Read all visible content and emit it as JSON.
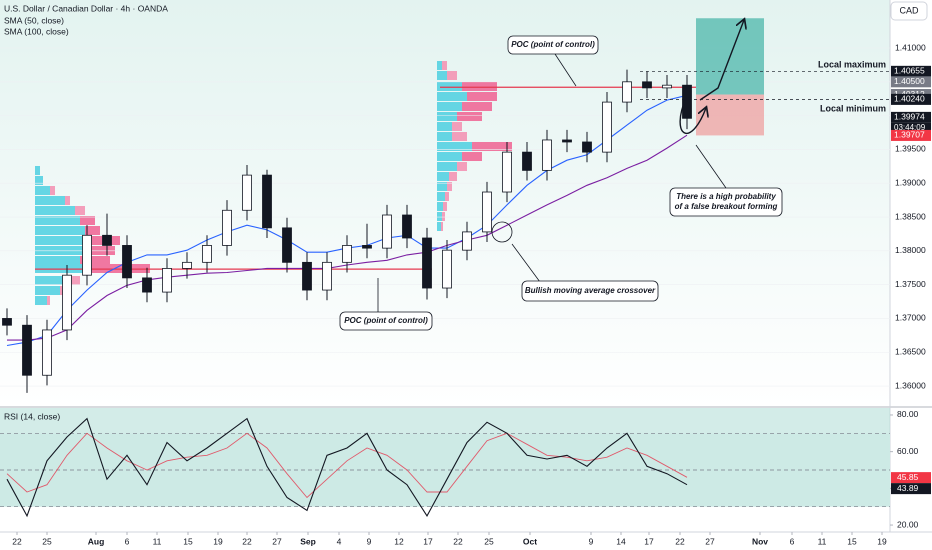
{
  "chart_data": [
    {
      "type": "candlestick",
      "title": "U.S. Dollar / Canadian Dollar · 4h · OANDA",
      "currency": "CAD",
      "countdown": "03:44:09",
      "x": [
        -1,
        1,
        3,
        5,
        7,
        9,
        11,
        13,
        15,
        17,
        19,
        21,
        23,
        25,
        27,
        29,
        31,
        33,
        35,
        37,
        39,
        41,
        43,
        45,
        47,
        49,
        51,
        53,
        55,
        57,
        59,
        61,
        63,
        65,
        67
      ],
      "open": [
        1.37,
        1.369,
        1.3616,
        1.3683,
        1.3764,
        1.3823,
        1.3808,
        1.376,
        1.3739,
        1.3774,
        1.3783,
        1.3808,
        1.386,
        1.3912,
        1.3834,
        1.3783,
        1.3742,
        1.3783,
        1.3808,
        1.3804,
        1.3853,
        1.3819,
        1.3745,
        1.3801,
        1.3828,
        1.3887,
        1.3946,
        1.3919,
        1.3964,
        1.3961,
        1.3946,
        1.402,
        1.405,
        1.4041,
        1.4045
      ],
      "high": [
        1.3715,
        1.3705,
        1.3698,
        1.3779,
        1.3838,
        1.3855,
        1.3823,
        1.3775,
        1.3789,
        1.3798,
        1.3823,
        1.3875,
        1.3927,
        1.392,
        1.3849,
        1.3798,
        1.3798,
        1.3823,
        1.384,
        1.3868,
        1.3868,
        1.3834,
        1.3816,
        1.3843,
        1.3902,
        1.3961,
        1.3961,
        1.3979,
        1.3979,
        1.3976,
        1.4035,
        1.4068,
        1.4065,
        1.406,
        1.406
      ],
      "low": [
        1.3675,
        1.359,
        1.3601,
        1.3668,
        1.3749,
        1.3793,
        1.3745,
        1.3724,
        1.3724,
        1.3759,
        1.3768,
        1.3793,
        1.3845,
        1.3819,
        1.3768,
        1.3727,
        1.3727,
        1.3768,
        1.3789,
        1.3789,
        1.3804,
        1.3728,
        1.373,
        1.3786,
        1.3813,
        1.3872,
        1.3904,
        1.3904,
        1.3946,
        1.3931,
        1.3931,
        1.4005,
        1.4026,
        1.4026,
        1.398
      ],
      "close": [
        1.369,
        1.3616,
        1.3683,
        1.3764,
        1.3823,
        1.3808,
        1.376,
        1.3739,
        1.3774,
        1.3783,
        1.3808,
        1.386,
        1.3912,
        1.3834,
        1.3783,
        1.3742,
        1.3783,
        1.3808,
        1.3804,
        1.3853,
        1.3819,
        1.3745,
        1.3801,
        1.3828,
        1.3887,
        1.3946,
        1.3919,
        1.3964,
        1.3961,
        1.3946,
        1.402,
        1.405,
        1.4041,
        1.4045,
        1.3996
      ],
      "series": [
        {
          "name": "SMA (50, close)",
          "color": "#2962ff",
          "values": [
            1.366,
            1.3665,
            1.3675,
            1.3712,
            1.3742,
            1.3768,
            1.3783,
            1.3794,
            1.3794,
            1.3801,
            1.3816,
            1.3828,
            1.3838,
            1.3831,
            1.3816,
            1.3798,
            1.3798,
            1.3804,
            1.3808,
            1.3819,
            1.3823,
            1.3804,
            1.3804,
            1.3819,
            1.3838,
            1.3868,
            1.3897,
            1.3919,
            1.3934,
            1.3942,
            1.3964,
            1.3986,
            1.4008,
            1.4023,
            1.403
          ]
        },
        {
          "name": "SMA (100, close)",
          "color": "#7b1fa2",
          "values": [
            1.3668,
            1.3668,
            1.3671,
            1.3683,
            1.3712,
            1.3734,
            1.3749,
            1.3757,
            1.3761,
            1.3764,
            1.3767,
            1.3768,
            1.3771,
            1.3774,
            1.3774,
            1.3774,
            1.3774,
            1.3779,
            1.3783,
            1.3786,
            1.3794,
            1.3798,
            1.3808,
            1.3816,
            1.3823,
            1.3838,
            1.3853,
            1.3868,
            1.3882,
            1.3897,
            1.3908,
            1.3922,
            1.3934,
            1.3952,
            1.3971
          ]
        }
      ],
      "xlim": [
        -1.7,
        87.3
      ],
      "ylim": [
        1.3572,
        1.4171
      ],
      "yticks": [
        {
          "value": 1.36,
          "label": "1.36000"
        },
        {
          "value": 1.365,
          "label": "1.36500"
        },
        {
          "value": 1.37,
          "label": "1.37000"
        },
        {
          "value": 1.375,
          "label": "1.37500"
        },
        {
          "value": 1.38,
          "label": "1.38000"
        },
        {
          "value": 1.385,
          "label": "1.38500"
        },
        {
          "value": 1.39,
          "label": "1.39000"
        },
        {
          "value": 1.395,
          "label": "1.39500"
        },
        {
          "value": 1.4,
          "label": "1.40000"
        },
        {
          "value": 1.405,
          "label": "1.40500"
        },
        {
          "value": 1.41,
          "label": "1.41000"
        }
      ],
      "poc_levels": [
        1.3773,
        1.4042
      ],
      "position": {
        "target": 1.4144,
        "entry": 1.40312,
        "stop": 1.39707
      },
      "price_labels": [
        {
          "value": 1.40655,
          "label": "1.40655",
          "color": "#131722",
          "line": "dashed"
        },
        {
          "value": 1.405,
          "label": "1.40500",
          "color": "#787b86"
        },
        {
          "value": 1.40312,
          "label": "1.40312",
          "color": "#787b86"
        },
        {
          "value": 1.4024,
          "label": "1.40240",
          "color": "#131722",
          "line": "dashed"
        },
        {
          "value": 1.39974,
          "label": "1.39974",
          "color": "#131722"
        },
        {
          "value": 1.39707,
          "label": "1.39707",
          "color": "#f23645"
        }
      ],
      "annotations": [
        "POC (point of control)",
        "POC (point of control)",
        "Local maximum",
        "Local minimum",
        "There is a high probability",
        "of a false breakout forming",
        "Bullish moving average crossover"
      ]
    },
    {
      "type": "line",
      "title": "RSI (14, close)",
      "x": [
        -1,
        1,
        3,
        5,
        7,
        9,
        11,
        13,
        15,
        17,
        19,
        21,
        23,
        25,
        27,
        29,
        31,
        33,
        35,
        37,
        39,
        41,
        43,
        45,
        47,
        49,
        51,
        53,
        55,
        57,
        59,
        61,
        63,
        65,
        67
      ],
      "series": [
        {
          "color": "#131722",
          "values": [
            45,
            25,
            55,
            68,
            78,
            45,
            58,
            42,
            65,
            55,
            62,
            70,
            78,
            52,
            35,
            28,
            58,
            62,
            70,
            50,
            42,
            25,
            45,
            65,
            76,
            70,
            58,
            56,
            58,
            52,
            62,
            70,
            52,
            48,
            42
          ]
        },
        {
          "color": "#e05a6b",
          "values": [
            48,
            38,
            42,
            58,
            70,
            62,
            55,
            50,
            55,
            57,
            58,
            62,
            70,
            62,
            48,
            35,
            45,
            55,
            62,
            58,
            50,
            38,
            38,
            52,
            66,
            70,
            64,
            58,
            57,
            55,
            57,
            62,
            58,
            52,
            46
          ]
        }
      ],
      "levels": [
        70,
        50,
        30
      ],
      "xlim": [
        -1.7,
        87.3
      ],
      "ylim": [
        17.3,
        83.8
      ],
      "yticks": [
        {
          "value": 20,
          "label": "20.00"
        },
        {
          "value": 40,
          "label": "40.00"
        },
        {
          "value": 60,
          "label": "60.00"
        },
        {
          "value": 80,
          "label": "80.00"
        }
      ],
      "value_markers": [
        {
          "value": 45.85,
          "label": "45.85",
          "color": "#f23645"
        },
        {
          "value": 43.89,
          "label": "43.89",
          "color": "#131722"
        }
      ],
      "xticks": [
        {
          "value": 0,
          "label": "22"
        },
        {
          "value": 3,
          "label": "25"
        },
        {
          "value": 7.9,
          "label": "Aug"
        },
        {
          "value": 11,
          "label": "6"
        },
        {
          "value": 14,
          "label": "11"
        },
        {
          "value": 17.1,
          "label": "15"
        },
        {
          "value": 20.1,
          "label": "19"
        },
        {
          "value": 23,
          "label": "22"
        },
        {
          "value": 26,
          "label": "27"
        },
        {
          "value": 29.1,
          "label": "Sep"
        },
        {
          "value": 32.2,
          "label": "4"
        },
        {
          "value": 35.2,
          "label": "9"
        },
        {
          "value": 38.2,
          "label": "12"
        },
        {
          "value": 41.1,
          "label": "17"
        },
        {
          "value": 44.1,
          "label": "22"
        },
        {
          "value": 47.2,
          "label": "25"
        },
        {
          "value": 51.3,
          "label": "Oct"
        },
        {
          "value": 57.4,
          "label": "9"
        },
        {
          "value": 60.4,
          "label": "14"
        },
        {
          "value": 63.2,
          "label": "17"
        },
        {
          "value": 66.3,
          "label": "22"
        },
        {
          "value": 69.3,
          "label": "27"
        },
        {
          "value": 74.3,
          "label": "Nov"
        },
        {
          "value": 77.5,
          "label": "6"
        },
        {
          "value": 80.5,
          "label": "11"
        },
        {
          "value": 83.5,
          "label": "15"
        },
        {
          "value": 86.5,
          "label": "19"
        }
      ]
    }
  ]
}
